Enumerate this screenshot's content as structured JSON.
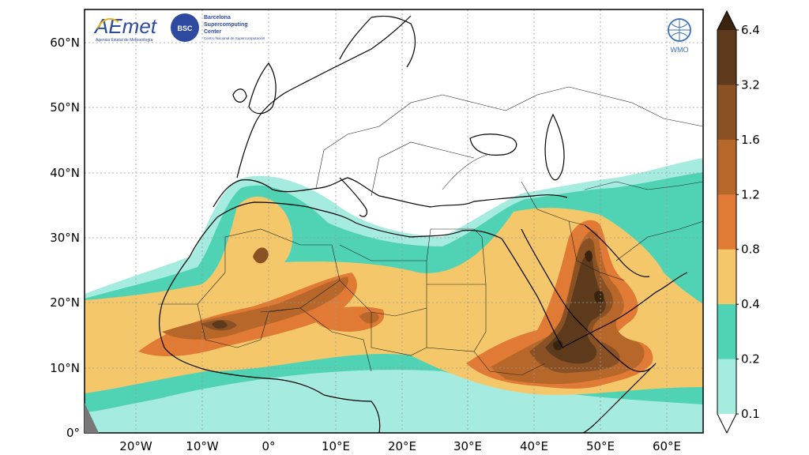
{
  "map": {
    "lat_labels": [
      "60°N",
      "50°N",
      "40°N",
      "30°N",
      "20°N",
      "10°N",
      "0°"
    ],
    "lon_labels": [
      "20°W",
      "10°W",
      "0°",
      "10°E",
      "20°E",
      "30°E",
      "40°E",
      "50°E",
      "60°E"
    ]
  },
  "colorbar": {
    "ticks": [
      "0.1",
      "0.2",
      "0.4",
      "0.8",
      "1.2",
      "1.6",
      "3.2",
      "6.4"
    ],
    "colors": [
      "#a6ebe0",
      "#4fd3b4",
      "#f4c86a",
      "#e07a34",
      "#b8672a",
      "#8a5224",
      "#5e3a1c",
      "#3a2410"
    ]
  },
  "logos": {
    "aemet_name": "AEmet",
    "aemet_caption": "Agencia Estatal de Meteorología",
    "bsc_badge": "BSC",
    "bsc_name_lines": [
      "Barcelona",
      "Supercomputing",
      "Center"
    ],
    "bsc_caption": "Centro Nacional de Supercomputación",
    "wmo_label": "WMO"
  }
}
